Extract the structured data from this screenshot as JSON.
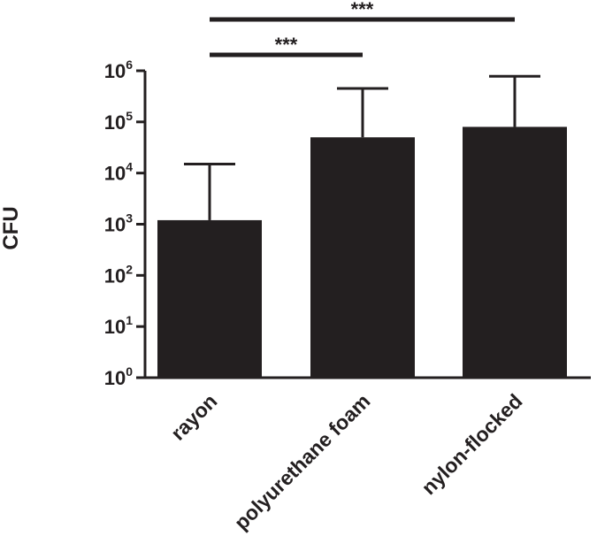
{
  "chart_data": {
    "type": "bar",
    "ylabel": "CFU",
    "yscale": "log",
    "ylim": [
      1,
      1000000
    ],
    "yticks": [
      {
        "value": 1,
        "base": "10",
        "exp": "0"
      },
      {
        "value": 10,
        "base": "10",
        "exp": "1"
      },
      {
        "value": 100,
        "base": "10",
        "exp": "2"
      },
      {
        "value": 1000,
        "base": "10",
        "exp": "3"
      },
      {
        "value": 10000,
        "base": "10",
        "exp": "4"
      },
      {
        "value": 100000,
        "base": "10",
        "exp": "5"
      },
      {
        "value": 1000000,
        "base": "10",
        "exp": "6"
      }
    ],
    "categories": [
      "rayon",
      "polyurethane foam",
      "nylon-flocked"
    ],
    "values": [
      1200,
      50000,
      80000
    ],
    "error_upper": [
      15000,
      450000,
      780000
    ],
    "significance": [
      {
        "from": 0,
        "to": 1,
        "label": "***"
      },
      {
        "from": 0,
        "to": 2,
        "label": "***"
      }
    ],
    "colors": {
      "bar": "#231f20",
      "axis": "#231f20"
    }
  }
}
